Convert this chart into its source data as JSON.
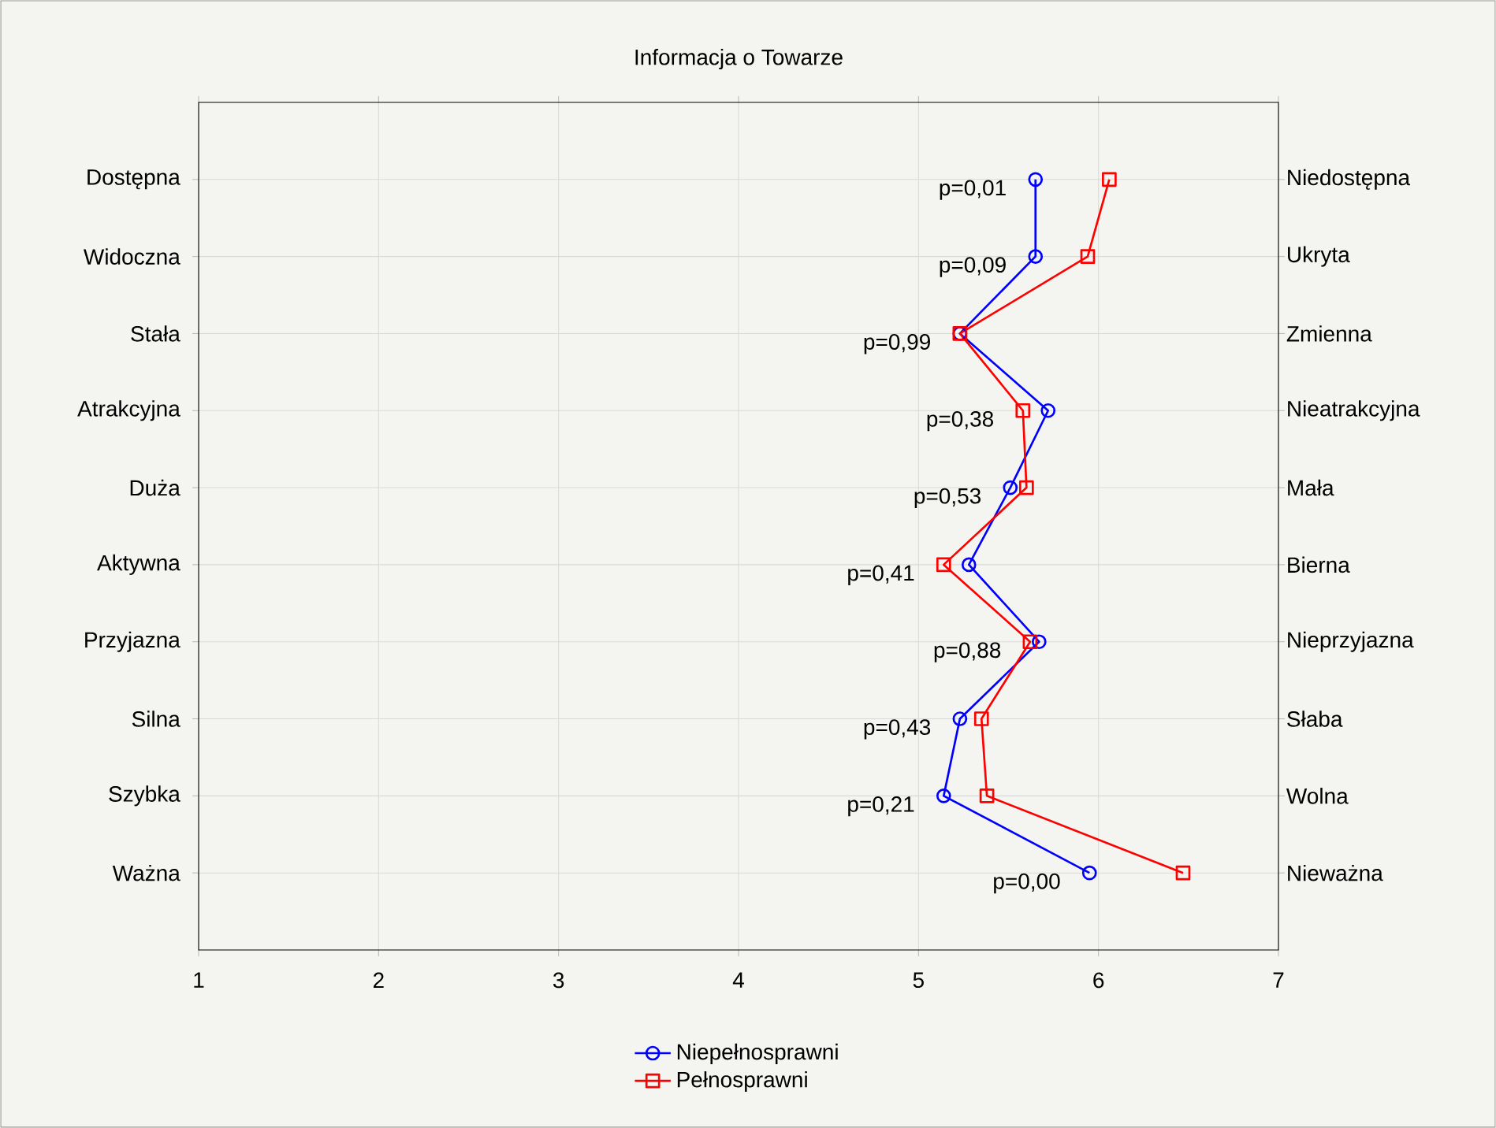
{
  "chart_data": {
    "type": "line",
    "orientation": "horizontal",
    "title": "Informacja o Towarze",
    "categories": [
      "Dostępna",
      "Widoczna",
      "Stała",
      "Atrakcyjna",
      "Duża",
      "Aktywna",
      "Przyjazna",
      "Silna",
      "Szybka",
      "Ważna"
    ],
    "y2_categories": [
      "Niedostępna",
      "Ukryta",
      "Zmienna",
      "Nieatrakcyjna",
      "Mała",
      "Bierna",
      "Nieprzyjazna",
      "Słaba",
      "Wolna",
      "Nieważna"
    ],
    "series": [
      {
        "name": "Niepełnosprawni",
        "color": "#0000ff",
        "marker": "circle",
        "values": [
          5.65,
          5.65,
          5.23,
          5.72,
          5.51,
          5.28,
          5.67,
          5.23,
          5.14,
          5.95
        ]
      },
      {
        "name": "Pełnosprawni",
        "color": "#ff0000",
        "marker": "square",
        "values": [
          6.06,
          5.94,
          5.23,
          5.58,
          5.6,
          5.14,
          5.62,
          5.35,
          5.38,
          6.47
        ]
      }
    ],
    "xlim": [
      1,
      7
    ],
    "xticks": [
      1,
      2,
      3,
      4,
      5,
      6,
      7
    ],
    "grid": true,
    "legend": "bottom",
    "annotations": [
      "p=0,01",
      "p=0,09",
      "p=0,99",
      "p=0,38",
      "p=0,53",
      "p=0,41",
      "p=0,88",
      "p=0,43",
      "p=0,21",
      "p=0,00"
    ]
  }
}
